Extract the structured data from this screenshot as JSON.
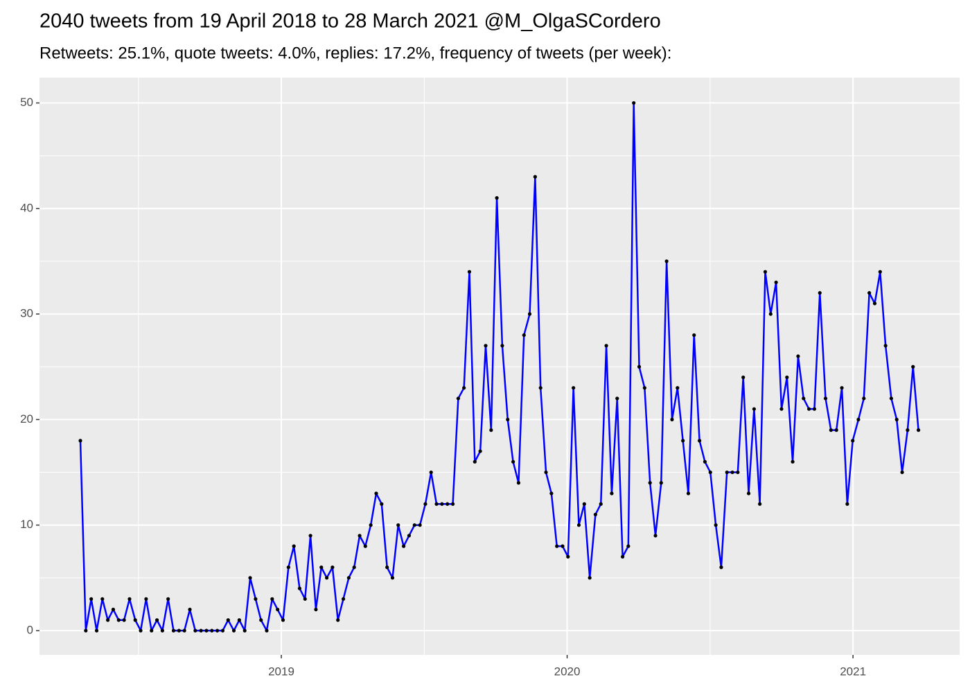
{
  "chart_data": {
    "type": "line",
    "title": "2040 tweets from 19 April 2018 to 28 March 2021 @M_OlgaSCordero",
    "subtitle": "Retweets: 25.1%, quote tweets: 4.0%, replies: 17.2%, frequency of tweets (per week):",
    "x": [
      2018.297,
      2018.316,
      2018.335,
      2018.354,
      2018.374,
      2018.393,
      2018.412,
      2018.431,
      2018.45,
      2018.469,
      2018.489,
      2018.508,
      2018.527,
      2018.546,
      2018.565,
      2018.584,
      2018.604,
      2018.623,
      2018.642,
      2018.661,
      2018.68,
      2018.699,
      2018.719,
      2018.738,
      2018.757,
      2018.776,
      2018.795,
      2018.814,
      2018.834,
      2018.853,
      2018.872,
      2018.891,
      2018.91,
      2018.929,
      2018.949,
      2018.968,
      2018.987,
      2019.006,
      2019.025,
      2019.044,
      2019.064,
      2019.083,
      2019.102,
      2019.121,
      2019.14,
      2019.159,
      2019.179,
      2019.198,
      2019.217,
      2019.236,
      2019.255,
      2019.274,
      2019.294,
      2019.313,
      2019.332,
      2019.351,
      2019.37,
      2019.389,
      2019.409,
      2019.428,
      2019.447,
      2019.466,
      2019.485,
      2019.504,
      2019.524,
      2019.543,
      2019.562,
      2019.581,
      2019.6,
      2019.619,
      2019.639,
      2019.658,
      2019.677,
      2019.696,
      2019.715,
      2019.734,
      2019.754,
      2019.773,
      2019.792,
      2019.811,
      2019.83,
      2019.849,
      2019.869,
      2019.888,
      2019.907,
      2019.926,
      2019.945,
      2019.964,
      2019.984,
      2020.003,
      2020.022,
      2020.041,
      2020.06,
      2020.079,
      2020.099,
      2020.118,
      2020.137,
      2020.156,
      2020.175,
      2020.194,
      2020.214,
      2020.233,
      2020.252,
      2020.271,
      2020.29,
      2020.309,
      2020.329,
      2020.348,
      2020.367,
      2020.386,
      2020.405,
      2020.424,
      2020.444,
      2020.463,
      2020.482,
      2020.501,
      2020.52,
      2020.539,
      2020.559,
      2020.578,
      2020.597,
      2020.616,
      2020.635,
      2020.654,
      2020.674,
      2020.693,
      2020.712,
      2020.731,
      2020.75,
      2020.769,
      2020.789,
      2020.808,
      2020.827,
      2020.846,
      2020.865,
      2020.884,
      2020.904,
      2020.923,
      2020.942,
      2020.961,
      2020.98,
      2020.999,
      2021.019,
      2021.038,
      2021.057,
      2021.076,
      2021.095,
      2021.114,
      2021.134,
      2021.153,
      2021.172,
      2021.191,
      2021.21,
      2021.229
    ],
    "series": [
      {
        "color": "#0000ff",
        "point_color": "#000000",
        "values": [
          18,
          0,
          3,
          0,
          3,
          1,
          2,
          1,
          1,
          3,
          1,
          0,
          3,
          0,
          1,
          0,
          3,
          0,
          0,
          0,
          2,
          0,
          0,
          0,
          0,
          0,
          0,
          1,
          0,
          1,
          0,
          5,
          3,
          1,
          0,
          3,
          2,
          1,
          6,
          8,
          4,
          3,
          9,
          2,
          6,
          5,
          6,
          1,
          3,
          5,
          6,
          9,
          8,
          10,
          13,
          12,
          6,
          5,
          10,
          8,
          9,
          10,
          10,
          12,
          15,
          12,
          12,
          12,
          12,
          22,
          23,
          34,
          16,
          17,
          27,
          19,
          41,
          27,
          20,
          16,
          14,
          28,
          30,
          43,
          23,
          15,
          13,
          8,
          8,
          7,
          23,
          10,
          12,
          5,
          11,
          12,
          27,
          13,
          22,
          7,
          8,
          50,
          25,
          23,
          14,
          9,
          14,
          35,
          20,
          23,
          18,
          13,
          28,
          18,
          16,
          15,
          10,
          6,
          15,
          15,
          15,
          24,
          13,
          21,
          12,
          34,
          30,
          33,
          21,
          24,
          16,
          26,
          22,
          21,
          21,
          32,
          22,
          19,
          19,
          23,
          12,
          18,
          20,
          22,
          32,
          31,
          34,
          27,
          22,
          20,
          15,
          19,
          25,
          19
        ]
      }
    ],
    "xlim": [
      2018.154,
      2021.373
    ],
    "xticks": [
      2019,
      2020,
      2021
    ],
    "ylim": [
      -2.3,
      52.4
    ],
    "yticks": [
      0,
      10,
      20,
      30,
      40,
      50
    ],
    "grid": true,
    "background": "#ebebeb"
  }
}
